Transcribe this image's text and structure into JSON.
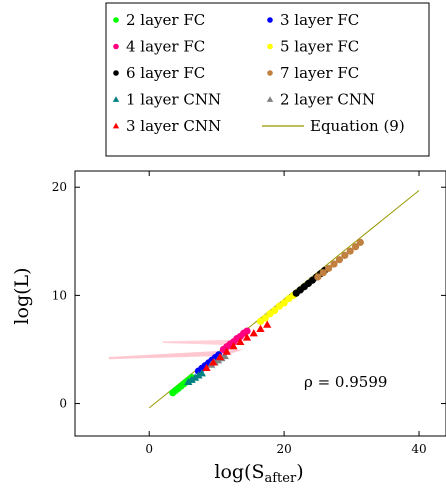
{
  "chart_data": {
    "type": "scatter",
    "xlabel_main": "log(S",
    "xlabel_sub": "after",
    "xlabel_close": ")",
    "ylabel": "log(L)",
    "xlim": [
      -11,
      44
    ],
    "ylim": [
      -3,
      21.5
    ],
    "xticks": [
      0,
      20,
      40
    ],
    "yticks": [
      0,
      10,
      20
    ],
    "grid": false,
    "legend_position": "top",
    "annotation": "ρ = 0.9599",
    "legend": [
      {
        "label": "2 layer FC",
        "marker": "circle",
        "color": "#00ff00"
      },
      {
        "label": "3 layer FC",
        "marker": "circle",
        "color": "#0000ff"
      },
      {
        "label": "4 layer FC",
        "marker": "circle",
        "color": "#ff0080"
      },
      {
        "label": "5 layer FC",
        "marker": "circle",
        "color": "#ffff00"
      },
      {
        "label": "6 layer FC",
        "marker": "circle",
        "color": "#000000"
      },
      {
        "label": "7 layer FC",
        "marker": "circle",
        "color": "#bf8040"
      },
      {
        "label": "1 layer CNN",
        "marker": "triangle",
        "color": "#008080"
      },
      {
        "label": "2 layer CNN",
        "marker": "triangle",
        "color": "#808080"
      },
      {
        "label": "3 layer CNN",
        "marker": "triangle",
        "color": "#ff0000"
      },
      {
        "label": "Equation (9)",
        "marker": "line",
        "color": "#999900"
      }
    ],
    "line": {
      "x": [
        0,
        40
      ],
      "y": [
        -0.4,
        19.7
      ],
      "color": "#999900"
    },
    "bands": [
      {
        "color": "#ffb6c1",
        "points": [
          [
            -6,
            4.1
          ],
          [
            11,
            4.4
          ],
          [
            14,
            5.0
          ],
          [
            -6,
            4.3
          ]
        ]
      },
      {
        "color": "#ffc0cb",
        "points": [
          [
            2,
            5.6
          ],
          [
            12,
            5.4
          ],
          [
            13,
            5.9
          ],
          [
            2,
            5.75
          ]
        ]
      }
    ],
    "series": [
      {
        "name": "2 layer FC",
        "marker": "circle",
        "color": "#00ff00",
        "x": [
          3.5,
          3.9,
          4.3,
          4.7,
          5.1,
          5.5,
          5.9,
          6.3
        ],
        "y": [
          1.0,
          1.2,
          1.4,
          1.6,
          1.8,
          2.0,
          2.2,
          2.4
        ]
      },
      {
        "name": "3 layer FC",
        "marker": "circle",
        "color": "#0000ff",
        "x": [
          7.3,
          7.8,
          8.3,
          8.8,
          9.3,
          9.8,
          10.3
        ],
        "y": [
          3.0,
          3.25,
          3.5,
          3.75,
          4.0,
          4.25,
          4.5
        ]
      },
      {
        "name": "4 layer FC",
        "marker": "circle",
        "color": "#ff0080",
        "x": [
          11.0,
          11.5,
          12.0,
          12.5,
          13.0,
          13.5,
          14.0,
          14.5
        ],
        "y": [
          5.0,
          5.25,
          5.5,
          5.7,
          6.0,
          6.2,
          6.5,
          6.7
        ]
      },
      {
        "name": "5 layer FC",
        "marker": "circle",
        "color": "#ffff00",
        "x": [
          16.5,
          17.2,
          17.9,
          18.6,
          19.3,
          20.0,
          20.7,
          21.4
        ],
        "y": [
          7.6,
          7.9,
          8.3,
          8.6,
          9.0,
          9.3,
          9.7,
          10.0
        ]
      },
      {
        "name": "6 layer FC",
        "marker": "circle",
        "color": "#000000",
        "x": [
          21.8,
          22.4,
          23.0,
          23.6,
          24.2,
          24.8,
          25.4,
          26.0
        ],
        "y": [
          10.2,
          10.5,
          10.8,
          11.1,
          11.4,
          11.7,
          12.0,
          12.3
        ]
      },
      {
        "name": "7 layer FC",
        "marker": "circle",
        "color": "#bf8040",
        "x": [
          25.0,
          25.8,
          26.6,
          27.4,
          28.2,
          29.0,
          29.8,
          30.6,
          31.3
        ],
        "y": [
          11.7,
          12.1,
          12.5,
          12.9,
          13.3,
          13.7,
          14.1,
          14.5,
          14.9
        ]
      },
      {
        "name": "1 layer CNN",
        "marker": "triangle",
        "color": "#008080",
        "x": [
          5.8,
          6.3,
          6.8,
          7.3,
          7.8
        ],
        "y": [
          2.0,
          2.2,
          2.4,
          2.6,
          2.8
        ]
      },
      {
        "name": "2 layer CNN",
        "marker": "triangle",
        "color": "#808080",
        "x": [
          9.2,
          9.7,
          10.2,
          10.7,
          11.2
        ],
        "y": [
          3.6,
          3.8,
          4.0,
          4.2,
          4.4
        ]
      },
      {
        "name": "3 layer CNN",
        "marker": "triangle",
        "color": "#ff0000",
        "x": [
          8.5,
          9.5,
          10.5,
          11.5,
          12.5,
          13.5,
          14.5,
          15.5,
          16.5,
          17.5
        ],
        "y": [
          3.3,
          3.8,
          4.3,
          4.8,
          5.3,
          5.7,
          6.1,
          6.5,
          6.9,
          7.3
        ]
      }
    ]
  }
}
